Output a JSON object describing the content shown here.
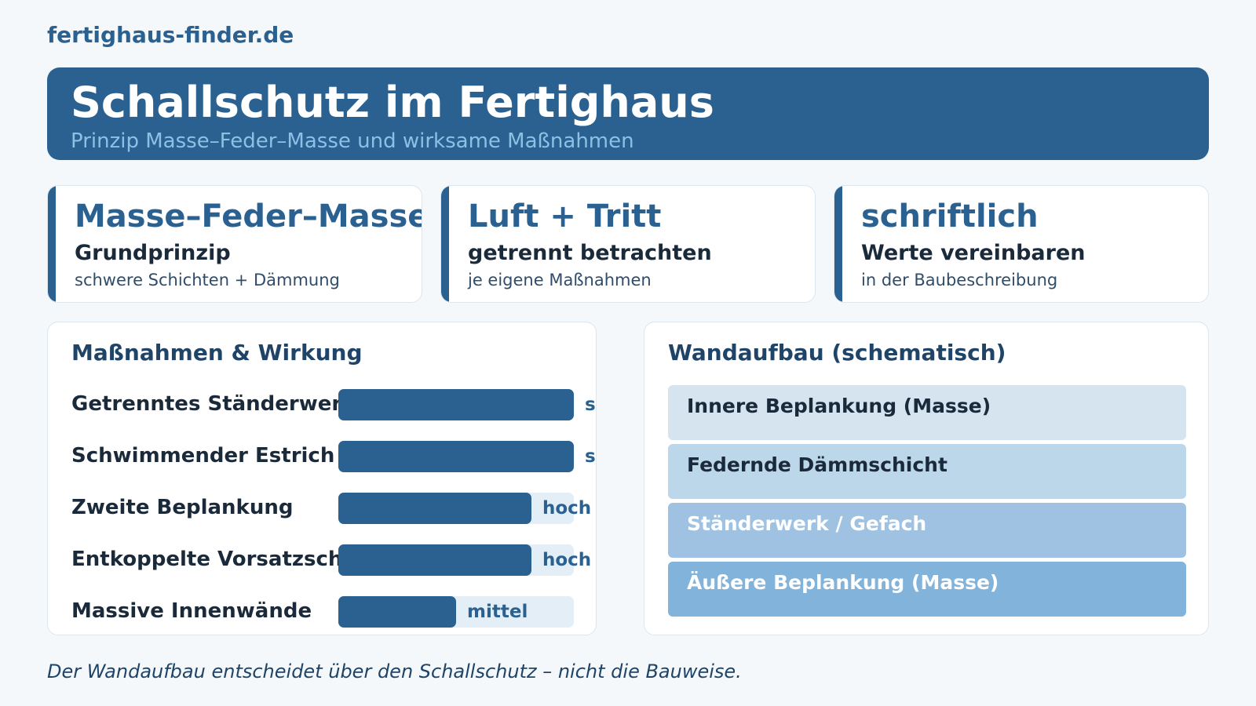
{
  "brand": "fertighaus-finder.de",
  "hero": {
    "title": "Schallschutz im Fertighaus",
    "subtitle": "Prinzip Masse–Feder–Masse und wirksame Maßnahmen"
  },
  "kpis": [
    {
      "big": "Masse–Feder–Masse",
      "mid": "Grundprinzip",
      "small": "schwere Schichten + Dämmung"
    },
    {
      "big": "Luft + Tritt",
      "mid": "getrennt betrachten",
      "small": "je eigene Maßnahmen"
    },
    {
      "big": "schriftlich",
      "mid": "Werte vereinbaren",
      "small": "in der Baubeschreibung"
    }
  ],
  "chart_data": {
    "type": "bar",
    "orientation": "horizontal",
    "title": "Maßnahmen & Wirkung",
    "categories": [
      "Getrenntes Ständerwerk",
      "Schwimmender Estrich",
      "Zweite Beplankung",
      "Entkoppelte Vorsatzschale",
      "Massive Innenwände"
    ],
    "values": [
      1.0,
      1.0,
      0.82,
      0.82,
      0.5
    ],
    "value_labels": [
      "sehr hoch",
      "sehr hoch",
      "hoch",
      "hoch",
      "mittel"
    ],
    "xlim": [
      0,
      1
    ],
    "grid": false,
    "legend": "none",
    "bar_color": "#2a6190",
    "track_color": "#e4eef6"
  },
  "wall": {
    "title": "Wandaufbau (schematisch)",
    "layers": [
      {
        "label": "Innere Beplankung (Masse)",
        "color": "#d6e4ef",
        "text_color": "#1b2a3a"
      },
      {
        "label": "Federnde Dämmschicht",
        "color": "#bcd6ea",
        "text_color": "#1b2a3a"
      },
      {
        "label": "Ständerwerk / Gefach",
        "color": "#9fc2e2",
        "text_color": "#ffffff"
      },
      {
        "label": "Äußere Beplankung (Masse)",
        "color": "#82b3da",
        "text_color": "#ffffff"
      }
    ]
  },
  "caption": "Der Wandaufbau entscheidet über den Schallschutz – nicht die Bauweise."
}
